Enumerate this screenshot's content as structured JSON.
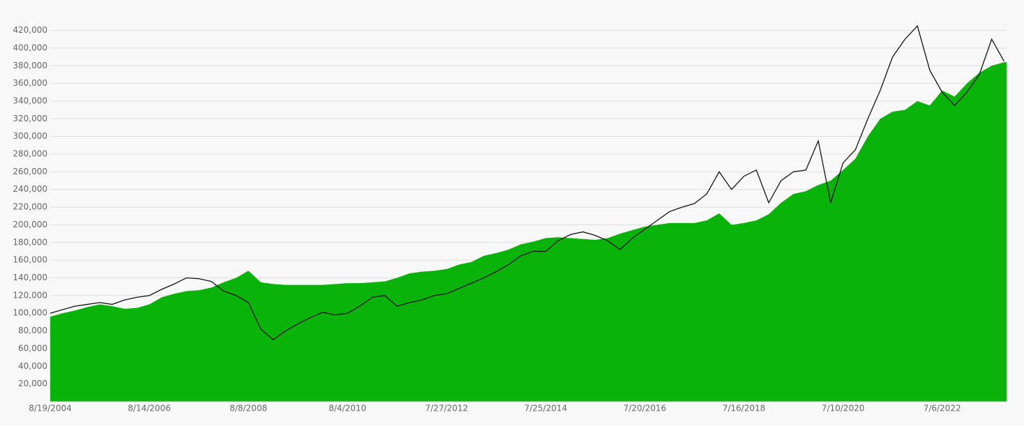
{
  "chart_data": {
    "type": "area",
    "categories": [
      "8/19/2004",
      null,
      null,
      null,
      null,
      null,
      null,
      null,
      "8/14/2006",
      null,
      null,
      null,
      null,
      null,
      null,
      null,
      "8/8/2008",
      null,
      null,
      null,
      null,
      null,
      null,
      null,
      "8/4/2010",
      null,
      null,
      null,
      null,
      null,
      null,
      null,
      "7/27/2012",
      null,
      null,
      null,
      null,
      null,
      null,
      null,
      "7/25/2014",
      null,
      null,
      null,
      null,
      null,
      null,
      null,
      "7/20/2016",
      null,
      null,
      null,
      null,
      null,
      null,
      null,
      "7/16/2018",
      null,
      null,
      null,
      null,
      null,
      null,
      null,
      "7/10/2020",
      null,
      null,
      null,
      null,
      null,
      null,
      null,
      "7/6/2022",
      null,
      null,
      null,
      null,
      null
    ],
    "series": [
      {
        "type": "area",
        "color": "#0ab30a",
        "values": [
          96000,
          100000,
          103000,
          107000,
          110000,
          108000,
          105000,
          106000,
          110000,
          118000,
          122000,
          125000,
          126000,
          129000,
          135000,
          140000,
          148000,
          135000,
          133000,
          132000,
          132000,
          132000,
          132000,
          133000,
          134000,
          134000,
          135000,
          136000,
          140000,
          145000,
          147000,
          148000,
          150000,
          155000,
          158000,
          165000,
          168000,
          172000,
          178000,
          181000,
          185000,
          186000,
          185000,
          184000,
          183000,
          185000,
          190000,
          194000,
          198000,
          200000,
          202000,
          202000,
          202000,
          205000,
          213000,
          200000,
          202000,
          205000,
          212000,
          225000,
          235000,
          238000,
          245000,
          250000,
          262000,
          275000,
          300000,
          320000,
          328000,
          330000,
          340000,
          335000,
          352000,
          345000,
          360000,
          372000,
          380000,
          384000
        ]
      },
      {
        "type": "line",
        "color": "#111111",
        "values": [
          100000,
          104000,
          108000,
          110000,
          112000,
          110000,
          115000,
          118000,
          120000,
          127000,
          133000,
          140000,
          139000,
          136000,
          125000,
          120000,
          112000,
          82000,
          70000,
          80000,
          88000,
          95000,
          101000,
          98000,
          100000,
          108000,
          118000,
          120000,
          108000,
          112000,
          115000,
          120000,
          122000,
          128000,
          134000,
          140000,
          147000,
          155000,
          165000,
          170000,
          170000,
          182000,
          189000,
          192000,
          188000,
          182000,
          172000,
          185000,
          195000,
          205000,
          215000,
          220000,
          224000,
          235000,
          260000,
          240000,
          255000,
          262000,
          225000,
          250000,
          260000,
          262000,
          295000,
          225000,
          270000,
          285000,
          320000,
          352000,
          390000,
          410000,
          425000,
          375000,
          350000,
          335000,
          350000,
          370000,
          410000,
          385000
        ]
      }
    ],
    "ylim": [
      0,
      437000
    ],
    "yticks": [
      {
        "value": 20000,
        "label": "20,000"
      },
      {
        "value": 40000,
        "label": "40,000"
      },
      {
        "value": 60000,
        "label": "60,000"
      },
      {
        "value": 80000,
        "label": "80,000"
      },
      {
        "value": 100000,
        "label": "100,000"
      },
      {
        "value": 120000,
        "label": "120,000"
      },
      {
        "value": 140000,
        "label": "140,000"
      },
      {
        "value": 160000,
        "label": "160,000"
      },
      {
        "value": 180000,
        "label": "180,000"
      },
      {
        "value": 200000,
        "label": "200,000"
      },
      {
        "value": 220000,
        "label": "220,000"
      },
      {
        "value": 240000,
        "label": "240,000"
      },
      {
        "value": 260000,
        "label": "260,000"
      },
      {
        "value": 280000,
        "label": "280,000"
      },
      {
        "value": 300000,
        "label": "300,000"
      },
      {
        "value": 320000,
        "label": "320,000"
      },
      {
        "value": 340000,
        "label": "340,000"
      },
      {
        "value": 360000,
        "label": "360,000"
      },
      {
        "value": 380000,
        "label": "380,000"
      },
      {
        "value": 400000,
        "label": "400,000"
      },
      {
        "value": 420000,
        "label": "420,000"
      }
    ],
    "grid": true
  }
}
